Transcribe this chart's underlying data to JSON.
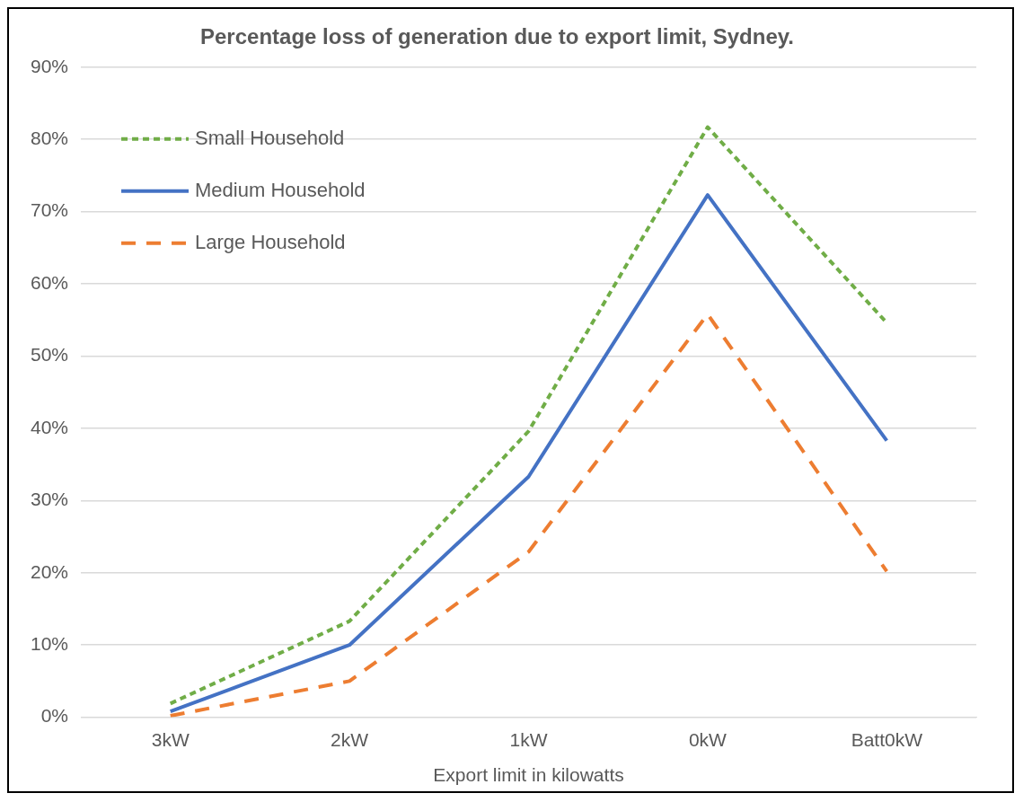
{
  "chart_data": {
    "type": "line",
    "title": "Percentage loss of generation due to export limit, Sydney.",
    "xlabel": "Export limit in kilowatts",
    "categories": [
      "3kW",
      "2kW",
      "1kW",
      "0kW",
      "Batt0kW"
    ],
    "series": [
      {
        "name": "Small Household",
        "color": "#70ad47",
        "line_style": "dotted",
        "values": [
          1.9,
          13.3,
          39.6,
          81.7,
          54.6
        ]
      },
      {
        "name": "Medium Household",
        "color": "#4472c4",
        "line_style": "solid",
        "values": [
          0.8,
          10.0,
          33.3,
          72.3,
          38.3
        ]
      },
      {
        "name": "Large Household",
        "color": "#ed7d31",
        "line_style": "dashed",
        "values": [
          0.2,
          5.0,
          22.9,
          55.8,
          20.2
        ]
      }
    ],
    "ylim": [
      0,
      90
    ],
    "yticks": [
      {
        "value": 0,
        "label": "0%"
      },
      {
        "value": 10,
        "label": "10%"
      },
      {
        "value": 20,
        "label": "20%"
      },
      {
        "value": 30,
        "label": "30%"
      },
      {
        "value": 40,
        "label": "40%"
      },
      {
        "value": 50,
        "label": "50%"
      },
      {
        "value": 60,
        "label": "60%"
      },
      {
        "value": 70,
        "label": "70%"
      },
      {
        "value": 80,
        "label": "80%"
      },
      {
        "value": 90,
        "label": "90%"
      }
    ],
    "grid": "y",
    "legend": "top left",
    "marker": "none"
  }
}
